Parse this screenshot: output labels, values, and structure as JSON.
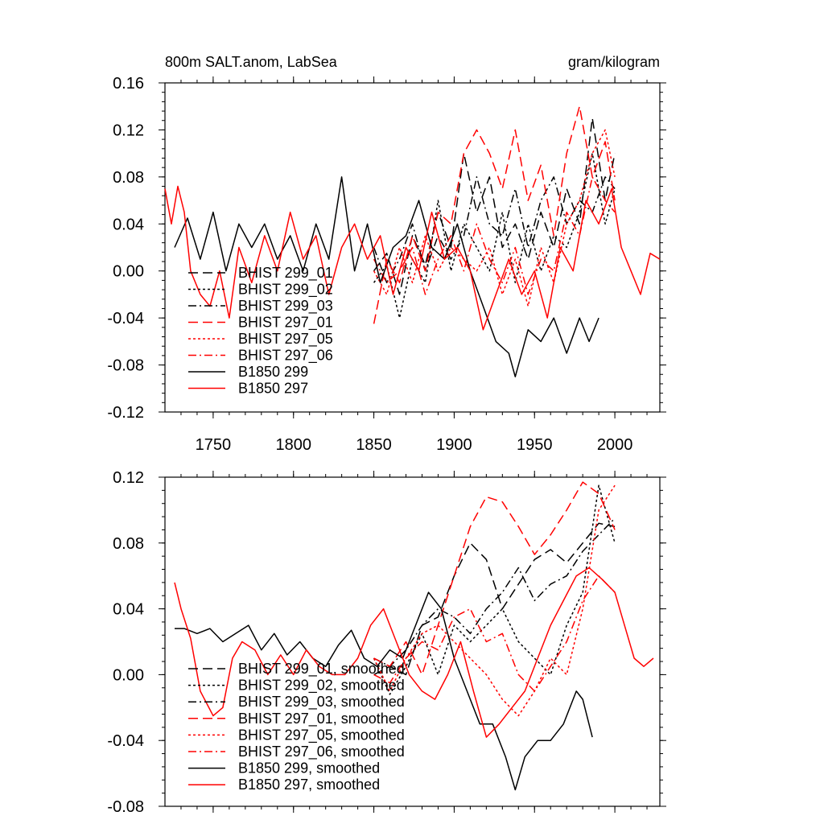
{
  "chart_data": [
    {
      "type": "line",
      "title": "800m SALT.anom, LabSea",
      "units": "gram/kilogram",
      "xlim": [
        1720,
        2028
      ],
      "ylim": [
        -0.12,
        0.16
      ],
      "xticks": [
        1750,
        1800,
        1850,
        1900,
        1950,
        2000
      ],
      "xtick_labels": [
        "1750",
        "1800",
        "1850",
        "1900",
        "1950",
        "2000"
      ],
      "yticks": [
        -0.12,
        -0.08,
        -0.04,
        0.0,
        0.04,
        0.08,
        0.12,
        0.16
      ],
      "ytick_labels": [
        "-0.12",
        "-0.08",
        "-0.04",
        "0.00",
        "0.04",
        "0.08",
        "0.12",
        "0.16"
      ],
      "legend_position": "bottom-left",
      "series": [
        {
          "name": "BHIST 299_01",
          "color": "#000000",
          "dash": "long-dash",
          "x": [
            1850,
            1858,
            1866,
            1874,
            1882,
            1890,
            1898,
            1906,
            1914,
            1922,
            1930,
            1938,
            1946,
            1954,
            1962,
            1970,
            1978,
            1986,
            1994,
            2000
          ],
          "y": [
            0.0,
            0.015,
            -0.02,
            0.03,
            0.005,
            0.05,
            0.02,
            0.1,
            0.05,
            0.08,
            0.02,
            0.04,
            0.01,
            0.05,
            0.02,
            0.07,
            0.04,
            0.13,
            0.06,
            0.1
          ]
        },
        {
          "name": "BHIST 299_02",
          "color": "#000000",
          "dash": "dot",
          "x": [
            1850,
            1858,
            1866,
            1874,
            1882,
            1890,
            1898,
            1906,
            1914,
            1922,
            1930,
            1938,
            1946,
            1954,
            1962,
            1970,
            1978,
            1986,
            1994,
            2000
          ],
          "y": [
            -0.01,
            0.005,
            -0.04,
            0.01,
            -0.01,
            0.06,
            0.0,
            0.04,
            0.02,
            0.0,
            0.05,
            -0.01,
            0.04,
            0.0,
            0.03,
            0.02,
            0.05,
            0.1,
            0.04,
            0.07
          ]
        },
        {
          "name": "BHIST 299_03",
          "color": "#000000",
          "dash": "dash-dot",
          "x": [
            1850,
            1858,
            1866,
            1874,
            1882,
            1890,
            1898,
            1906,
            1914,
            1922,
            1930,
            1938,
            1946,
            1954,
            1962,
            1970,
            1978,
            1986,
            1994,
            2000
          ],
          "y": [
            0.02,
            -0.01,
            0.01,
            0.04,
            0.0,
            0.03,
            0.01,
            0.03,
            0.08,
            0.04,
            0.03,
            0.07,
            0.02,
            0.06,
            0.08,
            0.04,
            0.06,
            0.05,
            0.08,
            0.07
          ]
        },
        {
          "name": "BHIST 297_01",
          "color": "#ff0000",
          "dash": "long-dash",
          "x": [
            1850,
            1858,
            1866,
            1874,
            1882,
            1890,
            1898,
            1906,
            1914,
            1922,
            1930,
            1938,
            1946,
            1954,
            1962,
            1970,
            1978,
            1986,
            1994,
            2000
          ],
          "y": [
            -0.045,
            0.01,
            -0.01,
            0.03,
            0.0,
            0.05,
            0.04,
            0.1,
            0.12,
            0.1,
            0.07,
            0.12,
            0.06,
            0.09,
            0.03,
            0.1,
            0.14,
            0.08,
            0.11,
            0.06
          ]
        },
        {
          "name": "BHIST 297_05",
          "color": "#ff0000",
          "dash": "dot",
          "x": [
            1850,
            1858,
            1866,
            1874,
            1882,
            1890,
            1898,
            1906,
            1914,
            1922,
            1930,
            1938,
            1946,
            1954,
            1962,
            1970,
            1978,
            1986,
            1994,
            2000
          ],
          "y": [
            0.0,
            -0.02,
            0.02,
            -0.01,
            0.03,
            0.0,
            0.02,
            0.01,
            0.0,
            0.02,
            -0.02,
            0.01,
            -0.03,
            0.02,
            -0.01,
            0.04,
            0.06,
            0.1,
            0.12,
            0.08
          ]
        },
        {
          "name": "BHIST 297_06",
          "color": "#ff0000",
          "dash": "dash-dot",
          "x": [
            1850,
            1858,
            1866,
            1874,
            1882,
            1890,
            1898,
            1906,
            1914,
            1922,
            1930,
            1938,
            1946,
            1954,
            1962,
            1970,
            1978,
            1986,
            1994,
            2000
          ],
          "y": [
            0.01,
            -0.01,
            0.0,
            0.02,
            -0.02,
            0.01,
            0.03,
            0.0,
            0.04,
            0.01,
            -0.01,
            0.02,
            -0.02,
            0.01,
            0.0,
            0.05,
            0.03,
            0.08,
            0.06,
            0.05
          ]
        },
        {
          "name": "B1850 299",
          "color": "#000000",
          "dash": "solid",
          "x": [
            1726,
            1734,
            1742,
            1750,
            1758,
            1766,
            1774,
            1782,
            1790,
            1798,
            1806,
            1814,
            1822,
            1830,
            1838,
            1846,
            1854,
            1862,
            1870,
            1878,
            1886,
            1894,
            1902,
            1910,
            1918,
            1926,
            1934,
            1938,
            1946,
            1954,
            1962,
            1970,
            1978,
            1984,
            1990
          ],
          "y": [
            0.02,
            0.045,
            0.01,
            0.05,
            0.0,
            0.04,
            0.02,
            0.04,
            0.01,
            0.03,
            0.0,
            0.04,
            0.01,
            0.08,
            0.0,
            0.04,
            -0.01,
            0.02,
            0.03,
            0.06,
            0.02,
            0.01,
            0.04,
            0.0,
            -0.03,
            -0.06,
            -0.07,
            -0.09,
            -0.05,
            -0.06,
            -0.04,
            -0.07,
            -0.04,
            -0.06,
            -0.04
          ]
        },
        {
          "name": "B1850 297",
          "color": "#ff0000",
          "dash": "solid",
          "x": [
            1720,
            1724,
            1728,
            1732,
            1736,
            1742,
            1748,
            1754,
            1760,
            1766,
            1774,
            1782,
            1790,
            1798,
            1806,
            1814,
            1822,
            1830,
            1838,
            1846,
            1854,
            1862,
            1870,
            1878,
            1886,
            1894,
            1902,
            1910,
            1918,
            1926,
            1934,
            1942,
            1950,
            1958,
            1966,
            1974,
            1982,
            1990,
            1998,
            2004,
            2010,
            2016,
            2022,
            2028
          ],
          "y": [
            0.07,
            0.04,
            0.072,
            0.05,
            0.0,
            -0.02,
            -0.03,
            0.0,
            -0.04,
            0.02,
            -0.01,
            0.03,
            0.0,
            0.05,
            0.01,
            0.03,
            -0.02,
            0.02,
            0.04,
            0.01,
            0.03,
            -0.02,
            0.02,
            0.0,
            0.05,
            0.01,
            0.02,
            0.0,
            -0.05,
            -0.02,
            0.01,
            -0.02,
            0.0,
            -0.04,
            0.02,
            0.0,
            0.06,
            0.04,
            0.07,
            0.02,
            0.0,
            -0.02,
            0.015,
            0.01
          ]
        }
      ]
    },
    {
      "type": "line",
      "title": "",
      "units": "",
      "xlim": [
        1720,
        2028
      ],
      "ylim": [
        -0.08,
        0.12
      ],
      "xticks": [
        1750,
        1800,
        1850,
        1900,
        1950,
        2000
      ],
      "xtick_labels": [],
      "yticks": [
        -0.08,
        -0.04,
        0.0,
        0.04,
        0.08,
        0.12
      ],
      "ytick_labels": [
        "-0.08",
        "-0.04",
        "0.00",
        "0.04",
        "0.08",
        "0.12"
      ],
      "legend_position": "bottom-left",
      "series": [
        {
          "name": "BHIST 299_01, smoothed",
          "color": "#000000",
          "dash": "long-dash",
          "x": [
            1850,
            1860,
            1870,
            1880,
            1890,
            1900,
            1910,
            1920,
            1930,
            1940,
            1950,
            1960,
            1970,
            1980,
            1990,
            2000
          ],
          "y": [
            0.0,
            0.005,
            0.0,
            0.03,
            0.035,
            0.06,
            0.08,
            0.07,
            0.04,
            0.055,
            0.07,
            0.076,
            0.068,
            0.08,
            0.092,
            0.09
          ]
        },
        {
          "name": "BHIST 299_02, smoothed",
          "color": "#000000",
          "dash": "dot",
          "x": [
            1850,
            1860,
            1870,
            1880,
            1890,
            1900,
            1910,
            1920,
            1930,
            1940,
            1950,
            1960,
            1970,
            1980,
            1990,
            2000
          ],
          "y": [
            0.01,
            -0.012,
            0.005,
            0.025,
            0.0,
            0.03,
            0.02,
            0.03,
            0.04,
            0.02,
            0.01,
            0.0,
            0.03,
            0.05,
            0.115,
            0.08
          ]
        },
        {
          "name": "BHIST 299_03, smoothed",
          "color": "#000000",
          "dash": "dash-dot",
          "x": [
            1850,
            1860,
            1870,
            1880,
            1890,
            1900,
            1910,
            1920,
            1930,
            1940,
            1950,
            1960,
            1970,
            1980,
            1990,
            2000
          ],
          "y": [
            0.01,
            0.005,
            0.015,
            0.03,
            0.04,
            0.035,
            0.025,
            0.04,
            0.05,
            0.065,
            0.045,
            0.055,
            0.06,
            0.075,
            0.085,
            0.095
          ]
        },
        {
          "name": "BHIST 297_01, smoothed",
          "color": "#ff0000",
          "dash": "long-dash",
          "x": [
            1850,
            1860,
            1870,
            1880,
            1890,
            1900,
            1910,
            1920,
            1930,
            1940,
            1950,
            1960,
            1970,
            1980,
            1990,
            2000
          ],
          "y": [
            0.01,
            0.005,
            0.02,
            0.0,
            0.03,
            0.06,
            0.09,
            0.108,
            0.105,
            0.09,
            0.073,
            0.085,
            0.1,
            0.117,
            0.11,
            0.088
          ]
        },
        {
          "name": "BHIST 297_05, smoothed",
          "color": "#ff0000",
          "dash": "dot",
          "x": [
            1850,
            1860,
            1870,
            1880,
            1890,
            1900,
            1910,
            1920,
            1930,
            1940,
            1950,
            1960,
            1970,
            1980,
            1990,
            2000
          ],
          "y": [
            0.01,
            -0.01,
            0.01,
            0.025,
            0.03,
            0.02,
            0.01,
            0.0,
            -0.015,
            -0.025,
            -0.01,
            0.01,
            0.0,
            0.04,
            0.1,
            0.115
          ]
        },
        {
          "name": "BHIST 297_06, smoothed",
          "color": "#ff0000",
          "dash": "dash-dot",
          "x": [
            1850,
            1860,
            1870,
            1880,
            1890,
            1900,
            1910,
            1920,
            1930,
            1940,
            1950,
            1960,
            1970,
            1980,
            1990,
            2000
          ],
          "y": [
            0.0,
            -0.005,
            0.01,
            0.02,
            0.015,
            0.035,
            0.04,
            0.02,
            0.025,
            0.0,
            -0.01,
            0.005,
            0.02,
            0.045,
            0.06,
            0.05
          ]
        },
        {
          "name": "B1850 299, smoothed",
          "color": "#000000",
          "dash": "solid",
          "x": [
            1726,
            1732,
            1740,
            1748,
            1756,
            1764,
            1772,
            1780,
            1788,
            1796,
            1804,
            1812,
            1820,
            1828,
            1836,
            1844,
            1852,
            1860,
            1868,
            1876,
            1884,
            1892,
            1900,
            1908,
            1916,
            1924,
            1932,
            1938,
            1944,
            1952,
            1960,
            1968,
            1976,
            1980,
            1986
          ],
          "y": [
            0.028,
            0.028,
            0.025,
            0.028,
            0.02,
            0.025,
            0.03,
            0.015,
            0.025,
            0.012,
            0.02,
            0.01,
            0.005,
            0.018,
            0.027,
            0.01,
            0.005,
            0.015,
            0.01,
            0.03,
            0.05,
            0.04,
            0.01,
            -0.01,
            -0.03,
            -0.03,
            -0.05,
            -0.07,
            -0.05,
            -0.04,
            -0.04,
            -0.03,
            -0.01,
            -0.015,
            -0.038
          ]
        },
        {
          "name": "B1850 297, smoothed",
          "color": "#ff0000",
          "dash": "solid",
          "x": [
            1726,
            1730,
            1736,
            1742,
            1750,
            1756,
            1762,
            1768,
            1776,
            1784,
            1792,
            1800,
            1808,
            1816,
            1824,
            1832,
            1840,
            1848,
            1856,
            1864,
            1872,
            1880,
            1888,
            1896,
            1904,
            1912,
            1920,
            1928,
            1936,
            1944,
            1952,
            1960,
            1968,
            1976,
            1984,
            1992,
            2000,
            2006,
            2012,
            2018,
            2024
          ],
          "y": [
            0.056,
            0.04,
            0.022,
            -0.01,
            -0.025,
            -0.02,
            0.01,
            0.02,
            0.015,
            0.0,
            0.012,
            0.0,
            0.015,
            0.005,
            0.0,
            0.0,
            0.01,
            0.03,
            0.04,
            0.02,
            0.0,
            -0.01,
            -0.015,
            0.0,
            0.02,
            -0.01,
            -0.038,
            -0.03,
            -0.02,
            -0.01,
            0.01,
            0.03,
            0.045,
            0.06,
            0.065,
            0.058,
            0.05,
            0.03,
            0.01,
            0.005,
            0.01
          ]
        }
      ]
    }
  ]
}
